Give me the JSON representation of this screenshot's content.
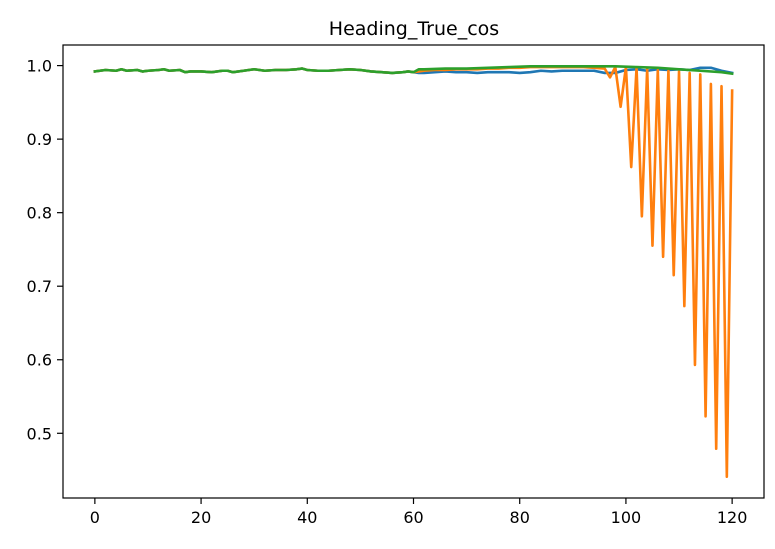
{
  "chart_data": {
    "type": "line",
    "title": "Heading_True_cos",
    "xlabel": "",
    "ylabel": "",
    "xlim": [
      -6,
      126
    ],
    "ylim": [
      0.412,
      1.028
    ],
    "x_ticks": [
      0,
      20,
      40,
      60,
      80,
      100,
      120
    ],
    "y_ticks": [
      0.5,
      0.6,
      0.7,
      0.8,
      0.9,
      1.0
    ],
    "y_tick_labels": [
      "0.5",
      "0.6",
      "0.7",
      "0.8",
      "0.9",
      "1.0"
    ],
    "grid": false,
    "legend": "none",
    "series": [
      {
        "color": "#1f77b4",
        "x": [
          0,
          2,
          4,
          5,
          6,
          8,
          9,
          10,
          12,
          13,
          14,
          16,
          17,
          18,
          20,
          22,
          24,
          25,
          26,
          28,
          30,
          31,
          32,
          34,
          36,
          38,
          39,
          40,
          42,
          44,
          46,
          48,
          50,
          52,
          54,
          56,
          58,
          59,
          60,
          61,
          62,
          64,
          66,
          68,
          70,
          72,
          74,
          76,
          78,
          80,
          82,
          84,
          86,
          88,
          90,
          92,
          94,
          96,
          98,
          100,
          102,
          104,
          106,
          108,
          110,
          112,
          114,
          116,
          118,
          120
        ],
        "y": [
          0.992,
          0.994,
          0.993,
          0.995,
          0.993,
          0.994,
          0.992,
          0.993,
          0.994,
          0.995,
          0.993,
          0.994,
          0.991,
          0.992,
          0.992,
          0.991,
          0.993,
          0.993,
          0.991,
          0.993,
          0.995,
          0.994,
          0.993,
          0.994,
          0.994,
          0.995,
          0.996,
          0.994,
          0.993,
          0.993,
          0.994,
          0.995,
          0.994,
          0.992,
          0.991,
          0.99,
          0.991,
          0.992,
          0.991,
          0.99,
          0.99,
          0.991,
          0.992,
          0.991,
          0.991,
          0.99,
          0.991,
          0.991,
          0.991,
          0.99,
          0.991,
          0.993,
          0.992,
          0.993,
          0.993,
          0.993,
          0.993,
          0.99,
          0.99,
          0.994,
          0.995,
          0.993,
          0.995,
          0.994,
          0.995,
          0.994,
          0.997,
          0.997,
          0.993,
          0.99
        ]
      },
      {
        "color": "#ff7f0e",
        "x": [
          0,
          2,
          4,
          5,
          6,
          8,
          9,
          10,
          12,
          13,
          14,
          16,
          17,
          18,
          20,
          22,
          24,
          25,
          26,
          28,
          30,
          31,
          32,
          34,
          36,
          38,
          39,
          40,
          42,
          44,
          46,
          48,
          50,
          52,
          54,
          56,
          58,
          59,
          60,
          62,
          64,
          66,
          68,
          70,
          72,
          74,
          76,
          78,
          80,
          82,
          84,
          86,
          88,
          90,
          92,
          94,
          96,
          97,
          98,
          99,
          100,
          101,
          102,
          103,
          104,
          105,
          106,
          107,
          108,
          109,
          110,
          111,
          112,
          113,
          114,
          115,
          116,
          117,
          118,
          119,
          120
        ],
        "y": [
          0.992,
          0.994,
          0.993,
          0.995,
          0.993,
          0.994,
          0.992,
          0.993,
          0.994,
          0.995,
          0.993,
          0.994,
          0.991,
          0.992,
          0.992,
          0.991,
          0.993,
          0.993,
          0.991,
          0.993,
          0.995,
          0.994,
          0.993,
          0.994,
          0.994,
          0.995,
          0.996,
          0.994,
          0.993,
          0.993,
          0.994,
          0.995,
          0.994,
          0.992,
          0.991,
          0.99,
          0.991,
          0.992,
          0.991,
          0.993,
          0.994,
          0.994,
          0.995,
          0.995,
          0.995,
          0.996,
          0.996,
          0.997,
          0.997,
          0.998,
          0.998,
          0.998,
          0.998,
          0.998,
          0.998,
          0.997,
          0.996,
          0.984,
          0.998,
          0.944,
          0.998,
          0.862,
          0.997,
          0.795,
          0.996,
          0.755,
          0.994,
          0.74,
          0.993,
          0.715,
          0.992,
          0.673,
          0.99,
          0.593,
          0.988,
          0.523,
          0.975,
          0.479,
          0.972,
          0.441,
          0.966
        ]
      },
      {
        "color": "#2ca02c",
        "x": [
          0,
          2,
          4,
          5,
          6,
          8,
          9,
          10,
          12,
          13,
          14,
          16,
          17,
          18,
          20,
          22,
          24,
          25,
          26,
          28,
          30,
          31,
          32,
          34,
          36,
          38,
          39,
          40,
          42,
          44,
          46,
          48,
          50,
          52,
          54,
          56,
          58,
          59,
          60,
          61,
          62,
          66,
          70,
          74,
          78,
          82,
          86,
          90,
          94,
          98,
          102,
          106,
          110,
          114,
          118,
          120
        ],
        "y": [
          0.992,
          0.994,
          0.993,
          0.995,
          0.993,
          0.994,
          0.992,
          0.993,
          0.994,
          0.995,
          0.993,
          0.994,
          0.991,
          0.992,
          0.992,
          0.991,
          0.993,
          0.993,
          0.991,
          0.993,
          0.995,
          0.994,
          0.993,
          0.994,
          0.994,
          0.995,
          0.996,
          0.994,
          0.993,
          0.993,
          0.994,
          0.995,
          0.994,
          0.992,
          0.991,
          0.99,
          0.991,
          0.992,
          0.991,
          0.995,
          0.995,
          0.996,
          0.996,
          0.997,
          0.998,
          0.999,
          0.999,
          0.999,
          0.999,
          0.999,
          0.998,
          0.997,
          0.995,
          0.993,
          0.991,
          0.989
        ]
      }
    ]
  }
}
